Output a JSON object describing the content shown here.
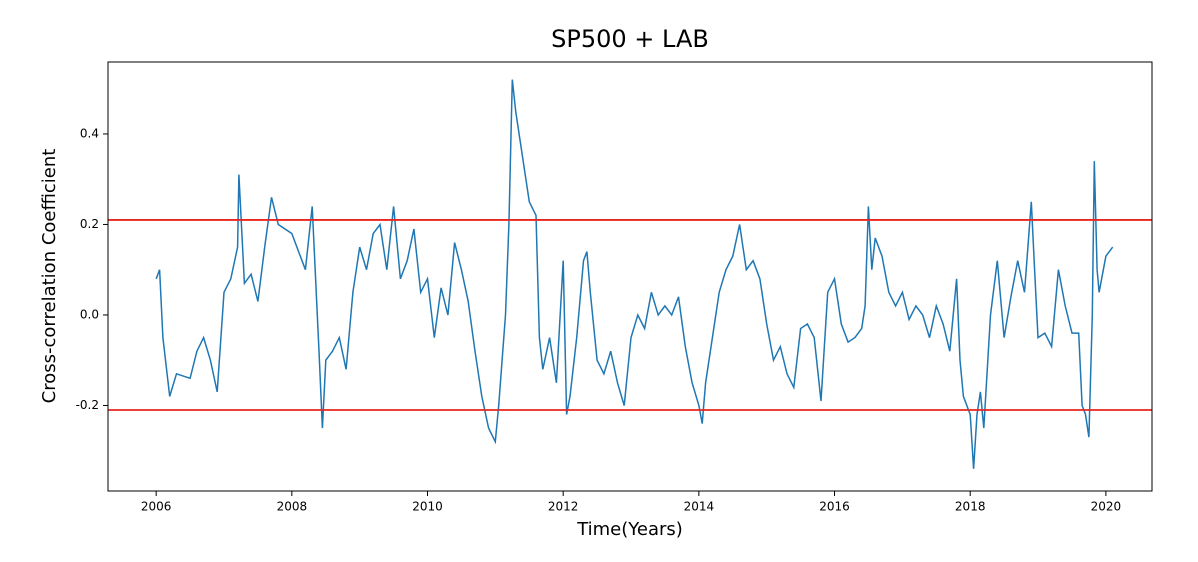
{
  "chart_data": {
    "type": "line",
    "title": "SP500 + LAB",
    "x_label": "Time(Years)",
    "y_label": "Cross-correlation Coefficient",
    "color": "#1f77b4",
    "x": [
      2006.0,
      2006.05,
      2006.1,
      2006.2,
      2006.3,
      2006.5,
      2006.6,
      2006.7,
      2006.8,
      2006.9,
      2007.0,
      2007.1,
      2007.2,
      2007.22,
      2007.3,
      2007.4,
      2007.5,
      2007.6,
      2007.7,
      2007.8,
      2008.0,
      2008.1,
      2008.2,
      2008.3,
      2008.4,
      2008.45,
      2008.5,
      2008.6,
      2008.7,
      2008.8,
      2008.9,
      2009.0,
      2009.1,
      2009.2,
      2009.3,
      2009.4,
      2009.5,
      2009.6,
      2009.7,
      2009.8,
      2009.9,
      2010.0,
      2010.1,
      2010.2,
      2010.3,
      2010.4,
      2010.5,
      2010.6,
      2010.7,
      2010.8,
      2010.9,
      2011.0,
      2011.05,
      2011.1,
      2011.15,
      2011.2,
      2011.25,
      2011.3,
      2011.4,
      2011.5,
      2011.6,
      2011.65,
      2011.7,
      2011.8,
      2011.9,
      2012.0,
      2012.05,
      2012.1,
      2012.2,
      2012.3,
      2012.35,
      2012.4,
      2012.5,
      2012.6,
      2012.7,
      2012.8,
      2012.9,
      2013.0,
      2013.1,
      2013.2,
      2013.3,
      2013.4,
      2013.5,
      2013.6,
      2013.7,
      2013.8,
      2013.9,
      2014.0,
      2014.05,
      2014.1,
      2014.2,
      2014.3,
      2014.4,
      2014.5,
      2014.6,
      2014.7,
      2014.8,
      2014.9,
      2015.0,
      2015.1,
      2015.2,
      2015.3,
      2015.4,
      2015.5,
      2015.6,
      2015.7,
      2015.8,
      2015.9,
      2016.0,
      2016.1,
      2016.2,
      2016.3,
      2016.4,
      2016.45,
      2016.5,
      2016.55,
      2016.6,
      2016.7,
      2016.8,
      2016.9,
      2017.0,
      2017.1,
      2017.2,
      2017.3,
      2017.4,
      2017.5,
      2017.6,
      2017.7,
      2017.8,
      2017.85,
      2017.9,
      2018.0,
      2018.05,
      2018.1,
      2018.15,
      2018.2,
      2018.3,
      2018.4,
      2018.5,
      2018.6,
      2018.7,
      2018.8,
      2018.9,
      2018.95,
      2019.0,
      2019.1,
      2019.2,
      2019.3,
      2019.4,
      2019.5,
      2019.6,
      2019.65,
      2019.7,
      2019.75,
      2019.8,
      2019.83,
      2019.87,
      2019.9,
      2020.0,
      2020.1
    ],
    "values": [
      0.08,
      0.1,
      -0.05,
      -0.18,
      -0.13,
      -0.14,
      -0.08,
      -0.05,
      -0.1,
      -0.17,
      0.05,
      0.08,
      0.15,
      0.31,
      0.07,
      0.09,
      0.03,
      0.15,
      0.26,
      0.2,
      0.18,
      0.14,
      0.1,
      0.24,
      -0.08,
      -0.25,
      -0.1,
      -0.08,
      -0.05,
      -0.12,
      0.05,
      0.15,
      0.1,
      0.18,
      0.2,
      0.1,
      0.24,
      0.08,
      0.12,
      0.19,
      0.05,
      0.08,
      -0.05,
      0.06,
      0.0,
      0.16,
      0.1,
      0.03,
      -0.08,
      -0.18,
      -0.25,
      -0.28,
      -0.2,
      -0.1,
      0.0,
      0.2,
      0.52,
      0.45,
      0.35,
      0.25,
      0.22,
      -0.05,
      -0.12,
      -0.05,
      -0.15,
      0.12,
      -0.22,
      -0.18,
      -0.05,
      0.12,
      0.14,
      0.05,
      -0.1,
      -0.13,
      -0.08,
      -0.15,
      -0.2,
      -0.05,
      0.0,
      -0.03,
      0.05,
      0.0,
      0.02,
      0.0,
      0.04,
      -0.07,
      -0.15,
      -0.2,
      -0.24,
      -0.15,
      -0.05,
      0.05,
      0.1,
      0.13,
      0.2,
      0.1,
      0.12,
      0.08,
      -0.02,
      -0.1,
      -0.07,
      -0.13,
      -0.16,
      -0.03,
      -0.02,
      -0.05,
      -0.19,
      0.05,
      0.08,
      -0.02,
      -0.06,
      -0.05,
      -0.03,
      0.02,
      0.24,
      0.1,
      0.17,
      0.13,
      0.05,
      0.02,
      0.05,
      -0.01,
      0.02,
      0.0,
      -0.05,
      0.02,
      -0.02,
      -0.08,
      0.08,
      -0.1,
      -0.18,
      -0.22,
      -0.34,
      -0.22,
      -0.17,
      -0.25,
      0.0,
      0.12,
      -0.05,
      0.04,
      0.12,
      0.05,
      0.25,
      0.1,
      -0.05,
      -0.04,
      -0.07,
      0.1,
      0.02,
      -0.04,
      -0.04,
      -0.2,
      -0.22,
      -0.27,
      0.0,
      0.34,
      0.1,
      0.05,
      0.13,
      0.15
    ],
    "reference_lines": [
      {
        "value": 0.21,
        "color": "#e8251f"
      },
      {
        "value": -0.21,
        "color": "#e8251f"
      }
    ],
    "xlim": [
      2005.29,
      2020.68
    ],
    "xticks": [
      2006,
      2008,
      2010,
      2012,
      2014,
      2016,
      2018,
      2020
    ],
    "ylim": [
      -0.389,
      0.559
    ],
    "yticks": [
      -0.2,
      {
        "value": 0,
        "label": "0.0"
      },
      0.2,
      0.4
    ]
  }
}
